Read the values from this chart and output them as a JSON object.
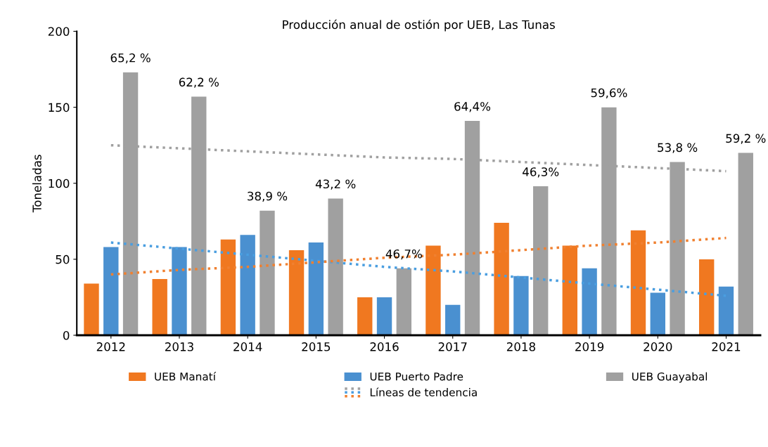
{
  "chart_data": {
    "type": "bar",
    "title": "Producción anual de ostión por UEB, Las Tunas",
    "ylabel": "Toneladas",
    "categories": [
      "2012",
      "2013",
      "2014",
      "2015",
      "2016",
      "2017",
      "2018",
      "2019",
      "2020",
      "2021"
    ],
    "ylim": [
      0,
      200
    ],
    "yticks": [
      0,
      50,
      100,
      150,
      200
    ],
    "grid": false,
    "legend": "bottom",
    "series": [
      {
        "name": "UEB Manatí",
        "color": "#f07820",
        "values": [
          34,
          37,
          63,
          56,
          25,
          59,
          74,
          59,
          69,
          50
        ]
      },
      {
        "name": "UEB Puerto Padre",
        "color": "#4a90d0",
        "values": [
          58,
          58,
          66,
          61,
          25,
          20,
          39,
          44,
          28,
          32
        ]
      },
      {
        "name": "UEB Guayabal",
        "color": "#a0a0a0",
        "values": [
          173,
          157,
          82,
          90,
          44,
          141,
          98,
          150,
          114,
          120
        ]
      },
      {
        "name": "Líneas de tendencia",
        "type": "line",
        "line_style": "dotted",
        "color": "#a0a0a0",
        "values": [
          125,
          123,
          121,
          119,
          117,
          116,
          114,
          112,
          110,
          108
        ]
      },
      {
        "type": "line",
        "line_style": "dotted",
        "color": "#4a9ee0",
        "values": [
          61,
          57,
          53,
          49,
          45,
          42,
          38,
          34,
          30,
          26
        ]
      },
      {
        "type": "line",
        "line_style": "dotted",
        "color": "#f08030",
        "values": [
          40,
          43,
          45,
          48,
          51,
          53,
          56,
          59,
          61,
          64
        ]
      }
    ],
    "annotations": [
      "65,2 %",
      "62,2 %",
      "38,9 %",
      "43,2 %",
      "46,7%",
      "64,4%",
      "46,3%",
      "59,6%",
      "53,8 %",
      "59,2 %"
    ]
  }
}
